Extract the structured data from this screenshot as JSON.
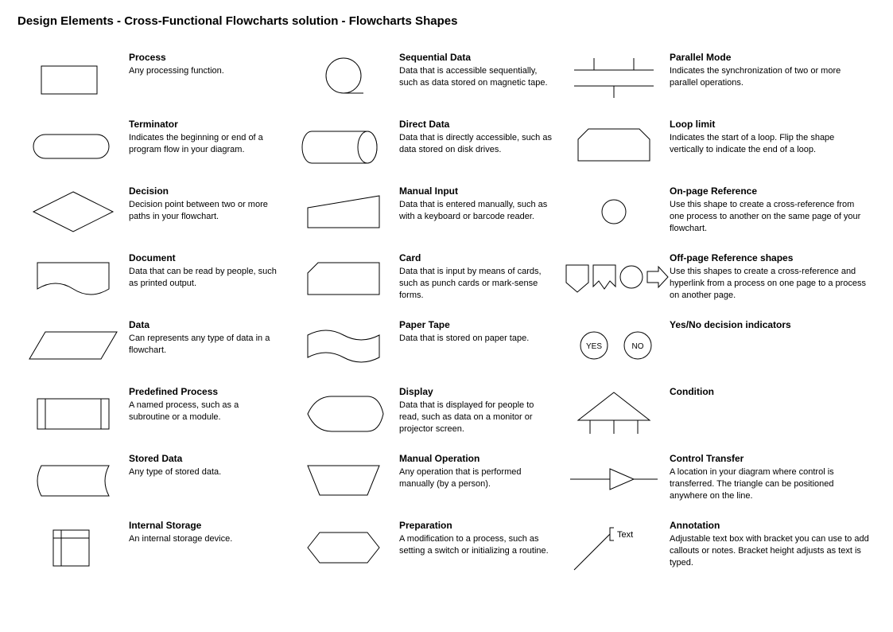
{
  "title": "Design Elements - Cross-Functional Flowcharts solution - Flowcharts Shapes",
  "stroke": "#000000",
  "fill": "#ffffff",
  "stroke_width": 1,
  "font_family": "Arial",
  "title_fontsize": 15,
  "name_fontsize": 12,
  "desc_fontsize": 11,
  "columns": [
    [
      {
        "key": "process",
        "name": "Process",
        "desc": "Any processing function."
      },
      {
        "key": "terminator",
        "name": "Terminator",
        "desc": "Indicates the beginning or end of a program flow in your diagram."
      },
      {
        "key": "decision",
        "name": "Decision",
        "desc": "Decision point between two or more paths in your flowchart."
      },
      {
        "key": "document",
        "name": "Document",
        "desc": "Data that can be read by people, such as printed output."
      },
      {
        "key": "data",
        "name": "Data",
        "desc": "Can represents any type of data in a flowchart."
      },
      {
        "key": "predefined",
        "name": "Predefined Process",
        "desc": "A named process, such as a subroutine or a module."
      },
      {
        "key": "stored",
        "name": "Stored Data",
        "desc": "Any type of stored data."
      },
      {
        "key": "internal",
        "name": "Internal Storage",
        "desc": "An internal storage device."
      }
    ],
    [
      {
        "key": "sequential",
        "name": "Sequential Data",
        "desc": "Data that is accessible sequentially, such as data stored on magnetic tape."
      },
      {
        "key": "direct",
        "name": "Direct Data",
        "desc": "Data that is directly accessible, such as data stored on disk drives."
      },
      {
        "key": "manualinput",
        "name": "Manual Input",
        "desc": "Data that is entered manually, such as with a keyboard or barcode reader."
      },
      {
        "key": "card",
        "name": "Card",
        "desc": "Data that is input by means of cards, such as punch cards or mark-sense forms."
      },
      {
        "key": "papertape",
        "name": "Paper Tape",
        "desc": "Data that is stored on paper tape."
      },
      {
        "key": "display",
        "name": "Display",
        "desc": "Data that is displayed for people to read, such as data on a monitor or projector screen."
      },
      {
        "key": "manualop",
        "name": "Manual Operation",
        "desc": "Any operation that is performed manually (by a person)."
      },
      {
        "key": "preparation",
        "name": "Preparation",
        "desc": "A modification to a process, such as setting a switch or initializing a routine."
      }
    ],
    [
      {
        "key": "parallel",
        "name": "Parallel Mode",
        "desc": "Indicates the synchronization of two or more parallel operations."
      },
      {
        "key": "looplimit",
        "name": "Loop limit",
        "desc": "Indicates the start of a loop. Flip the shape vertically to indicate the end of a loop."
      },
      {
        "key": "onpage",
        "name": "On-page Reference",
        "desc": "Use this shape to create a cross-reference from one process to another on the same page of your flowchart."
      },
      {
        "key": "offpage",
        "name": "Off-page Reference shapes",
        "desc": "Use this shapes to create a cross-reference and hyperlink from a process on one page to a process on another page."
      },
      {
        "key": "yesno",
        "name": "Yes/No decision indicators",
        "desc": ""
      },
      {
        "key": "condition",
        "name": "Condition",
        "desc": ""
      },
      {
        "key": "control",
        "name": "Control Transfer",
        "desc": "A location in your diagram where control is transferred. The triangle can be positioned anywhere on the line."
      },
      {
        "key": "annotation",
        "name": "Annotation",
        "desc": "Adjustable text box with bracket you can use to add callouts or notes. Bracket height adjusts as text is typed."
      }
    ]
  ],
  "yesno_labels": {
    "yes": "YES",
    "no": "NO"
  },
  "annotation_text": "Text"
}
